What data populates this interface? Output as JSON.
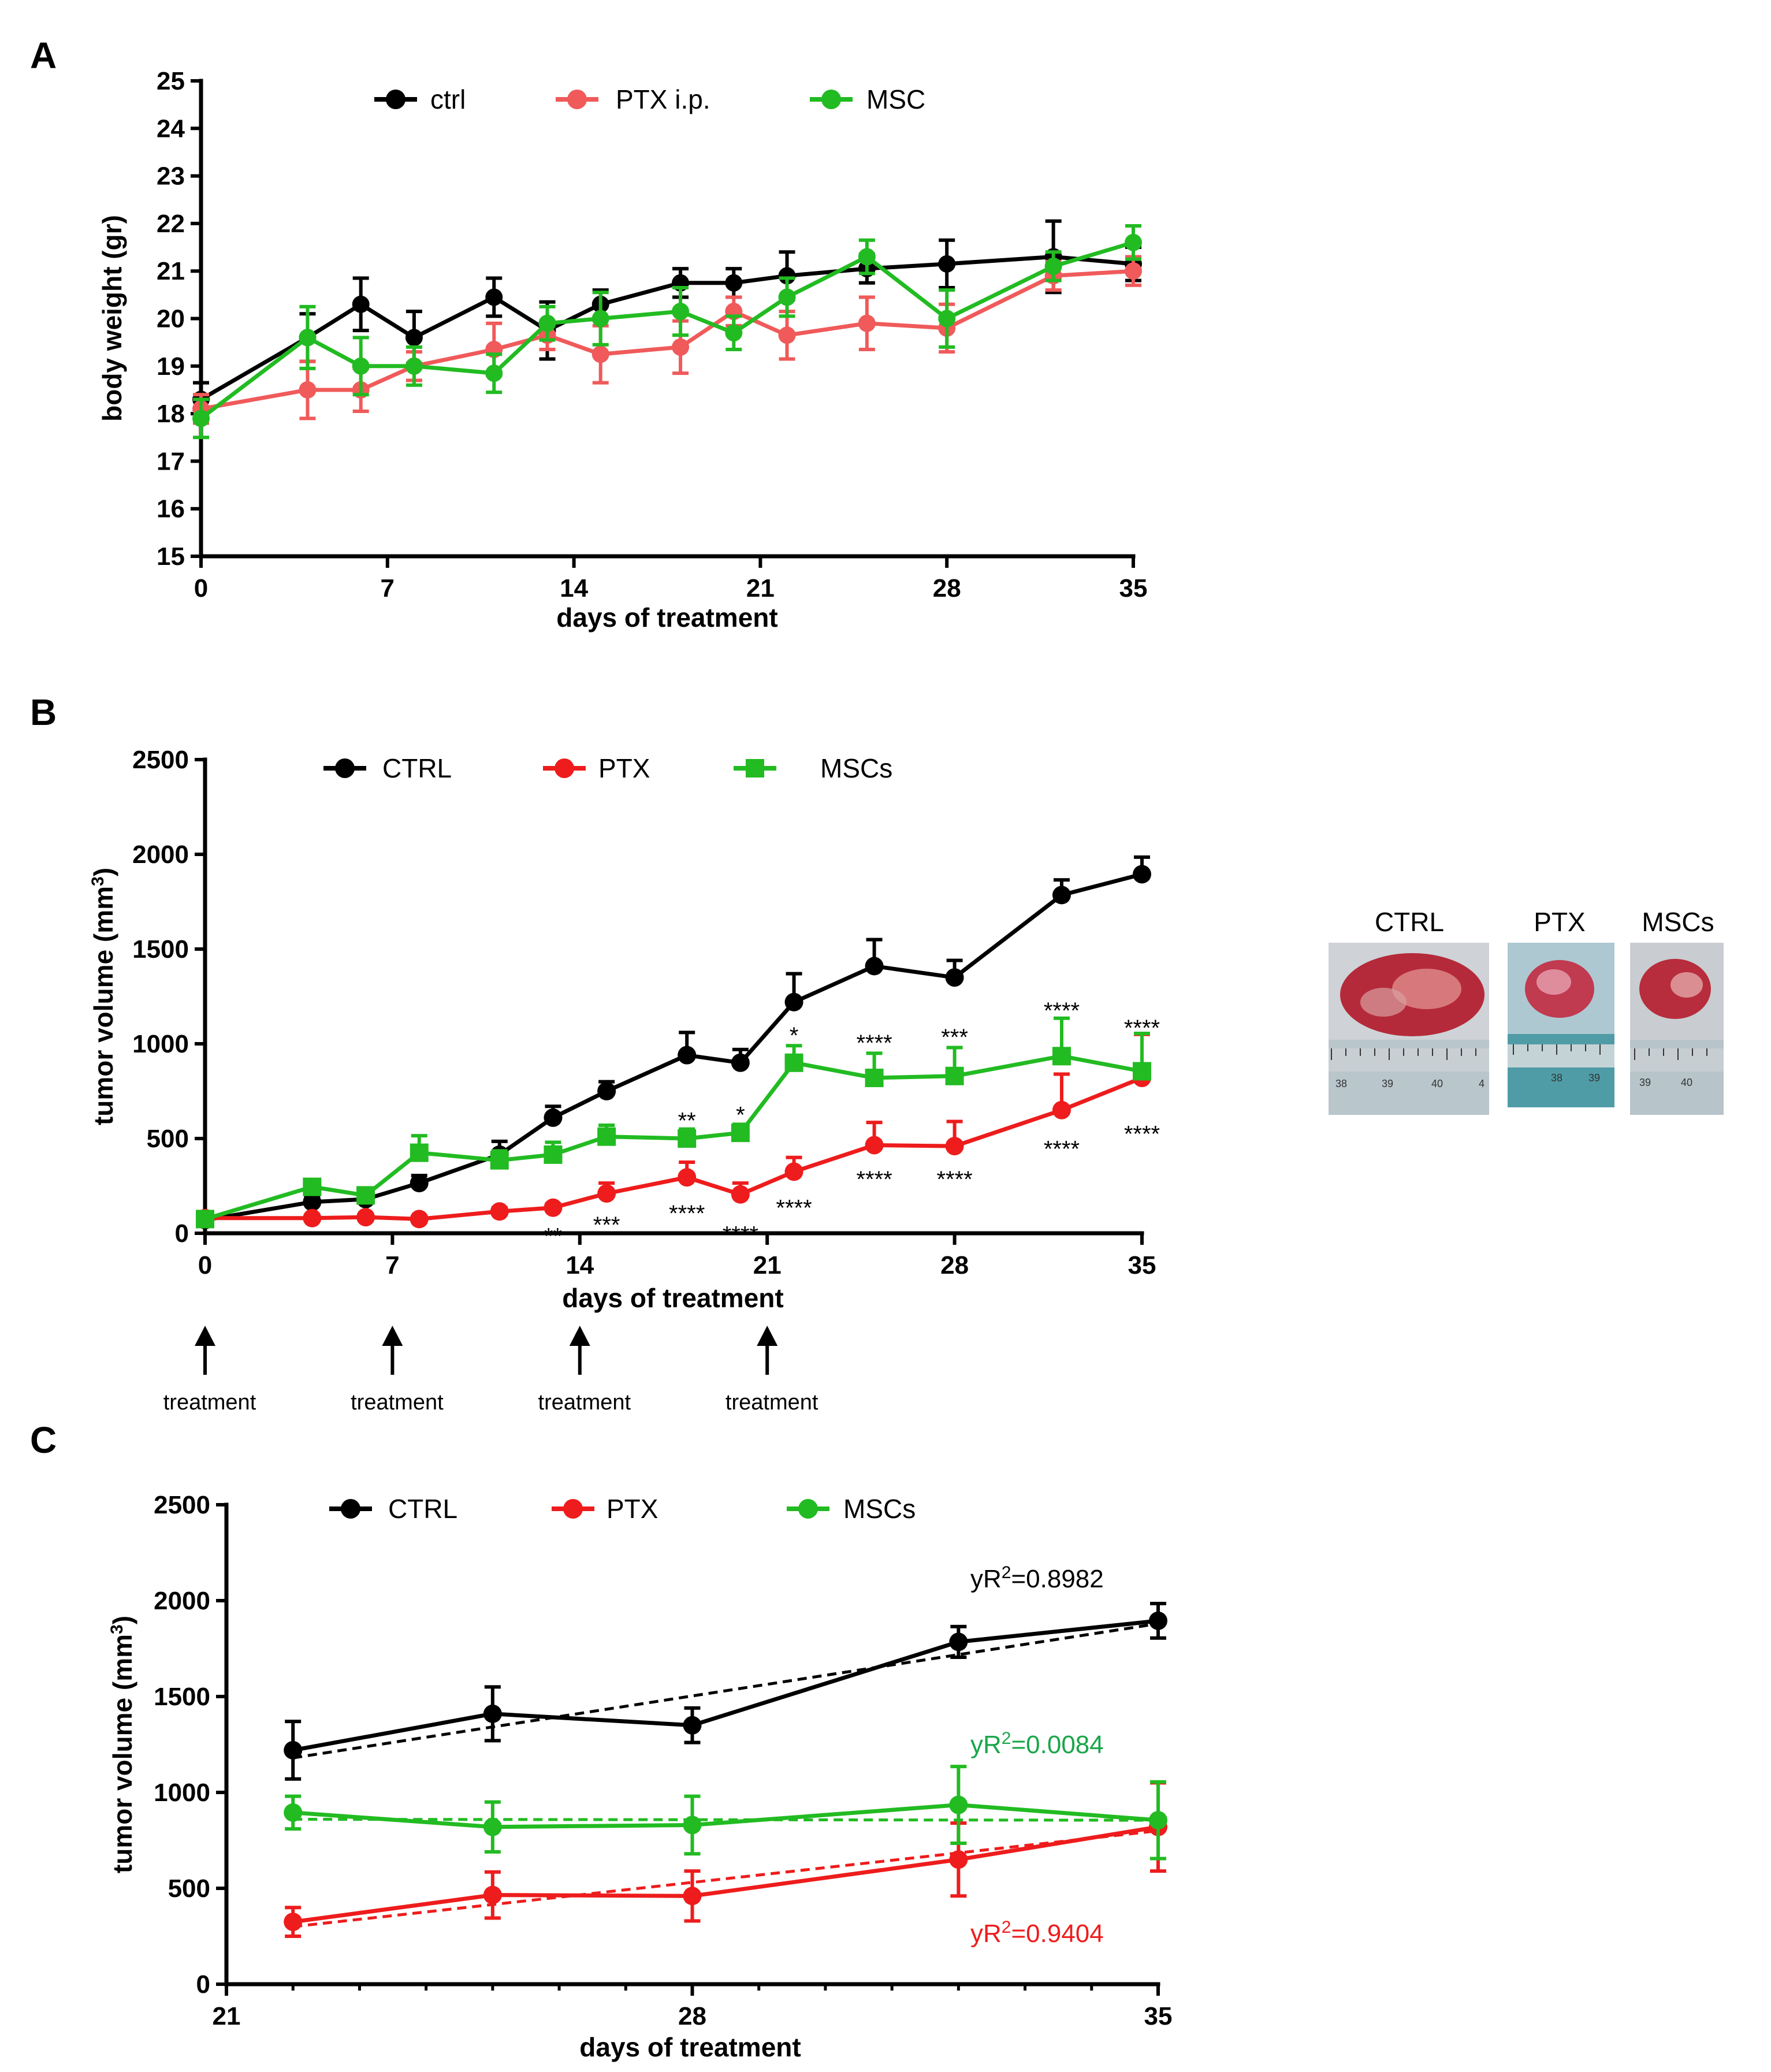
{
  "colors": {
    "ctrl": "#000000",
    "ptx_a": "#f05a5a",
    "ptx": "#ee1c1c",
    "msc": "#22bb22",
    "r2_msc": "#1aa64a",
    "r2_ptx": "#ee1c1c"
  },
  "chart_data": [
    {
      "id": "A",
      "panel_label": "A",
      "type": "line",
      "xlabel": "days of treatment",
      "ylabel": "body weight (gr)",
      "xlim": [
        0,
        35
      ],
      "ylim": [
        15,
        25
      ],
      "xticks": [
        0,
        7,
        14,
        21,
        28,
        35
      ],
      "xtick_labels": [
        "0",
        "7",
        "14",
        "21",
        "28",
        "35"
      ],
      "yticks": [
        15,
        16,
        17,
        18,
        19,
        20,
        21,
        22,
        23,
        24,
        25
      ],
      "ytick_labels": [
        "15",
        "16",
        "17",
        "18",
        "19",
        "20",
        "21",
        "22",
        "23",
        "24",
        "25"
      ],
      "legend": [
        "ctrl",
        "PTX i.p.",
        "MSC"
      ],
      "series": [
        {
          "name": "ctrl",
          "color_key": "ctrl",
          "marker": "circle",
          "x": [
            0,
            4,
            6,
            8,
            11,
            13,
            15,
            18,
            20,
            22,
            25,
            28,
            32,
            35
          ],
          "y": [
            18.3,
            19.6,
            20.3,
            19.6,
            20.45,
            19.75,
            20.3,
            20.75,
            20.75,
            20.9,
            21.05,
            21.15,
            21.3,
            21.15
          ],
          "err": [
            0.35,
            0.5,
            0.55,
            0.55,
            0.4,
            0.6,
            0.3,
            0.3,
            0.3,
            0.5,
            0.3,
            0.5,
            0.75,
            0.35
          ]
        },
        {
          "name": "PTX i.p.",
          "color_key": "ptx_a",
          "marker": "circle",
          "x": [
            0,
            4,
            6,
            8,
            11,
            13,
            15,
            18,
            20,
            22,
            25,
            28,
            32,
            35
          ],
          "y": [
            18.1,
            18.5,
            18.5,
            19.0,
            19.35,
            19.65,
            19.25,
            19.4,
            20.15,
            19.65,
            19.9,
            19.8,
            20.9,
            21.0
          ],
          "err": [
            0.3,
            0.6,
            0.45,
            0.3,
            0.55,
            0.3,
            0.6,
            0.55,
            0.3,
            0.5,
            0.55,
            0.5,
            0.3,
            0.3
          ]
        },
        {
          "name": "MSC",
          "color_key": "msc",
          "marker": "circle",
          "x": [
            0,
            4,
            6,
            8,
            11,
            13,
            15,
            18,
            20,
            22,
            25,
            28,
            32,
            35
          ],
          "y": [
            17.9,
            19.6,
            19.0,
            19.0,
            18.85,
            19.9,
            20.0,
            20.15,
            19.7,
            20.45,
            21.3,
            20.0,
            21.1,
            21.6
          ],
          "err": [
            0.4,
            0.65,
            0.6,
            0.4,
            0.4,
            0.35,
            0.55,
            0.5,
            0.35,
            0.4,
            0.35,
            0.6,
            0.3,
            0.35
          ]
        }
      ]
    },
    {
      "id": "B",
      "panel_label": "B",
      "type": "line",
      "xlabel": "days of treatment",
      "ylabel": "tumor volume (mm",
      "ylabel_sup": "3",
      "ylabel_end": ")",
      "xlim": [
        0,
        35
      ],
      "ylim": [
        0,
        2500
      ],
      "xticks": [
        0,
        7,
        14,
        21,
        28,
        35
      ],
      "xtick_labels": [
        "0",
        "7",
        "14",
        "21",
        "28",
        "35"
      ],
      "yticks": [
        0,
        500,
        1000,
        1500,
        2000,
        2500
      ],
      "ytick_labels": [
        "0",
        "500",
        "1000",
        "1500",
        "2000",
        "2500"
      ],
      "legend": [
        "CTRL",
        "PTX",
        "MSCs"
      ],
      "series": [
        {
          "name": "CTRL",
          "color_key": "ctrl",
          "marker": "circle",
          "x": [
            0,
            4,
            6,
            8,
            11,
            13,
            15,
            18,
            20,
            22,
            25,
            28,
            32,
            35
          ],
          "y": [
            70,
            165,
            180,
            265,
            415,
            610,
            750,
            940,
            900,
            1220,
            1410,
            1350,
            1785,
            1895
          ],
          "err": [
            20,
            25,
            25,
            40,
            70,
            60,
            50,
            120,
            70,
            150,
            140,
            90,
            80,
            90
          ]
        },
        {
          "name": "PTX",
          "color_key": "ptx",
          "marker": "circle",
          "x": [
            0,
            4,
            6,
            8,
            11,
            13,
            15,
            18,
            20,
            22,
            25,
            28,
            32,
            35
          ],
          "y": [
            80,
            80,
            85,
            75,
            115,
            135,
            210,
            295,
            205,
            325,
            465,
            460,
            650,
            820
          ],
          "err": [
            15,
            15,
            15,
            15,
            20,
            20,
            55,
            80,
            60,
            75,
            120,
            130,
            190,
            230
          ]
        },
        {
          "name": "MSCs",
          "color_key": "msc",
          "marker": "square",
          "x": [
            0,
            4,
            6,
            8,
            11,
            13,
            15,
            18,
            20,
            22,
            25,
            28,
            32,
            35
          ],
          "y": [
            75,
            245,
            200,
            425,
            385,
            415,
            510,
            500,
            530,
            900,
            820,
            830,
            935,
            855
          ],
          "err": [
            20,
            25,
            25,
            90,
            50,
            65,
            60,
            50,
            45,
            90,
            130,
            150,
            200,
            200
          ]
        }
      ],
      "annotations_above": [
        {
          "x": 18,
          "y": 590,
          "text": "**"
        },
        {
          "x": 20,
          "y": 620,
          "text": "*"
        },
        {
          "x": 22,
          "y": 1040,
          "text": "*"
        },
        {
          "x": 25,
          "y": 1000,
          "text": "****"
        },
        {
          "x": 28,
          "y": 1030,
          "text": "***"
        },
        {
          "x": 32,
          "y": 1170,
          "text": "****"
        },
        {
          "x": 35,
          "y": 1080,
          "text": "****"
        }
      ],
      "annotations_below": [
        {
          "x": 13,
          "y": -20,
          "text": "**"
        },
        {
          "x": 15,
          "y": 40,
          "text": "***"
        },
        {
          "x": 18,
          "y": 100,
          "text": "****"
        },
        {
          "x": 20,
          "y": -10,
          "text": "****"
        },
        {
          "x": 22,
          "y": 130,
          "text": "****"
        },
        {
          "x": 25,
          "y": 280,
          "text": "****"
        },
        {
          "x": 28,
          "y": 280,
          "text": "****"
        },
        {
          "x": 32,
          "y": 440,
          "text": "****"
        },
        {
          "x": 35,
          "y": 520,
          "text": "****"
        }
      ],
      "treatment_days": [
        0,
        7,
        14,
        21
      ],
      "treatment_label": "treatment"
    },
    {
      "id": "C",
      "panel_label": "C",
      "type": "line",
      "xlabel": "days of treatment",
      "ylabel": "tumor volume (mm",
      "ylabel_sup": "3",
      "ylabel_end": ")",
      "xlim": [
        21,
        35
      ],
      "ylim": [
        0,
        2500
      ],
      "xticks": [
        21,
        28,
        35
      ],
      "xtick_labels": [
        "21",
        "28",
        "35"
      ],
      "yticks": [
        0,
        500,
        1000,
        1500,
        2000,
        2500
      ],
      "ytick_labels": [
        "0",
        "500",
        "1000",
        "1500",
        "2000",
        "2500"
      ],
      "legend": [
        "CTRL",
        "PTX",
        "MSCs"
      ],
      "series": [
        {
          "name": "CTRL",
          "color_key": "ctrl",
          "marker": "circle",
          "x": [
            22,
            25,
            28,
            32,
            35
          ],
          "y": [
            1220,
            1410,
            1350,
            1785,
            1895
          ],
          "err": [
            150,
            140,
            90,
            80,
            90
          ]
        },
        {
          "name": "PTX",
          "color_key": "ptx",
          "marker": "circle",
          "x": [
            22,
            25,
            28,
            32,
            35
          ],
          "y": [
            325,
            465,
            460,
            650,
            820
          ],
          "err": [
            75,
            120,
            130,
            190,
            230
          ]
        },
        {
          "name": "MSCs",
          "color_key": "msc",
          "marker": "circle",
          "x": [
            22,
            25,
            28,
            32,
            35
          ],
          "y": [
            895,
            820,
            830,
            935,
            855
          ],
          "err": [
            85,
            130,
            150,
            200,
            200
          ]
        }
      ],
      "trendlines": [
        {
          "color_key": "ctrl",
          "x": [
            22,
            35
          ],
          "y": [
            1180,
            1880
          ]
        },
        {
          "color_key": "ptx",
          "x": [
            22,
            35
          ],
          "y": [
            300,
            800
          ]
        },
        {
          "color_key": "msc",
          "x": [
            22,
            35
          ],
          "y": [
            860,
            855
          ]
        }
      ],
      "r2_labels": [
        {
          "prefix": "yR",
          "sup": "2",
          "value": "=0.8982",
          "color_key": "ctrl"
        },
        {
          "prefix": "yR",
          "sup": "2",
          "value": "=0.0084",
          "color_key": "r2_msc"
        },
        {
          "prefix": "yR",
          "sup": "2",
          "value": "=0.9404",
          "color_key": "r2_ptx"
        }
      ]
    }
  ],
  "photos": {
    "labels": [
      "CTRL",
      "PTX",
      "MSCs"
    ],
    "ruler_numbers": [
      [
        "38",
        "39",
        "40",
        "4"
      ],
      [
        "38",
        "39"
      ],
      [
        "39",
        "40"
      ]
    ]
  }
}
